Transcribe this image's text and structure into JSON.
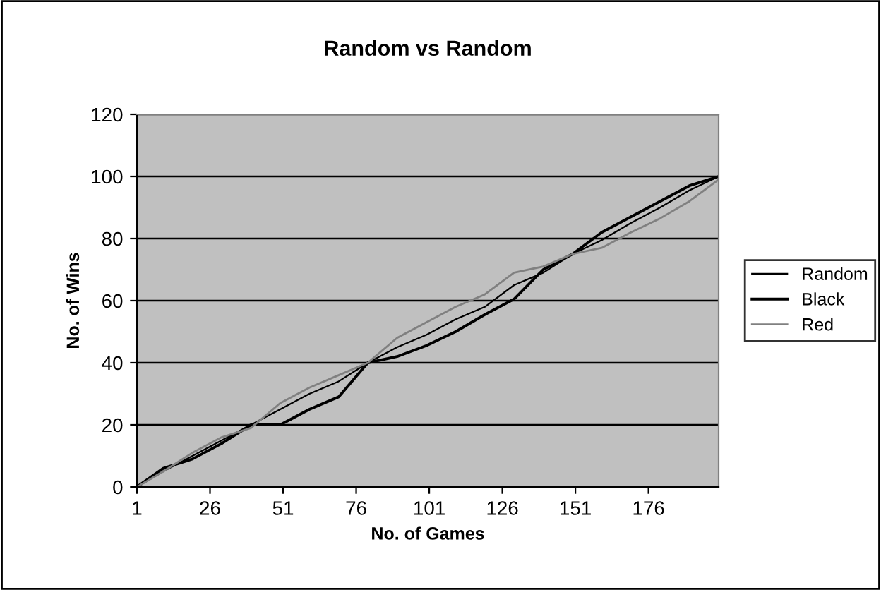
{
  "chart_data": {
    "type": "line",
    "title": "Random vs Random",
    "xlabel": "No. of Games",
    "ylabel": "No. of Wins",
    "x": [
      1,
      10,
      20,
      30,
      40,
      50,
      60,
      70,
      80,
      90,
      100,
      110,
      120,
      130,
      140,
      150,
      160,
      170,
      180,
      190,
      200
    ],
    "series": [
      {
        "name": "Random",
        "color": "#000000",
        "values": [
          0,
          5,
          10,
          15,
          20,
          25,
          30,
          34,
          40,
          45,
          49,
          54,
          58,
          65,
          69,
          75,
          79.5,
          85,
          90,
          95.5,
          100
        ]
      },
      {
        "name": "Black",
        "color": "#000000",
        "values": [
          0,
          6,
          9,
          14,
          20,
          20,
          25,
          29,
          40,
          42,
          45.5,
          50,
          55.5,
          60.5,
          70,
          75,
          82,
          87,
          92,
          97,
          100
        ]
      },
      {
        "name": "Red",
        "color": "#808080",
        "values": [
          0,
          5,
          11,
          16,
          19,
          27,
          32,
          36,
          40,
          48,
          53,
          58,
          62,
          69,
          71,
          75,
          77,
          82,
          86.5,
          92,
          99
        ]
      }
    ],
    "xlim": [
      1,
      200
    ],
    "xticks": [
      1,
      26,
      51,
      76,
      101,
      126,
      151,
      176
    ],
    "ylim": [
      0,
      120
    ],
    "yticks": [
      0,
      20,
      40,
      60,
      80,
      100,
      120
    ],
    "grid": "y",
    "legend": "right",
    "marker": "none",
    "line_style": "solid"
  }
}
